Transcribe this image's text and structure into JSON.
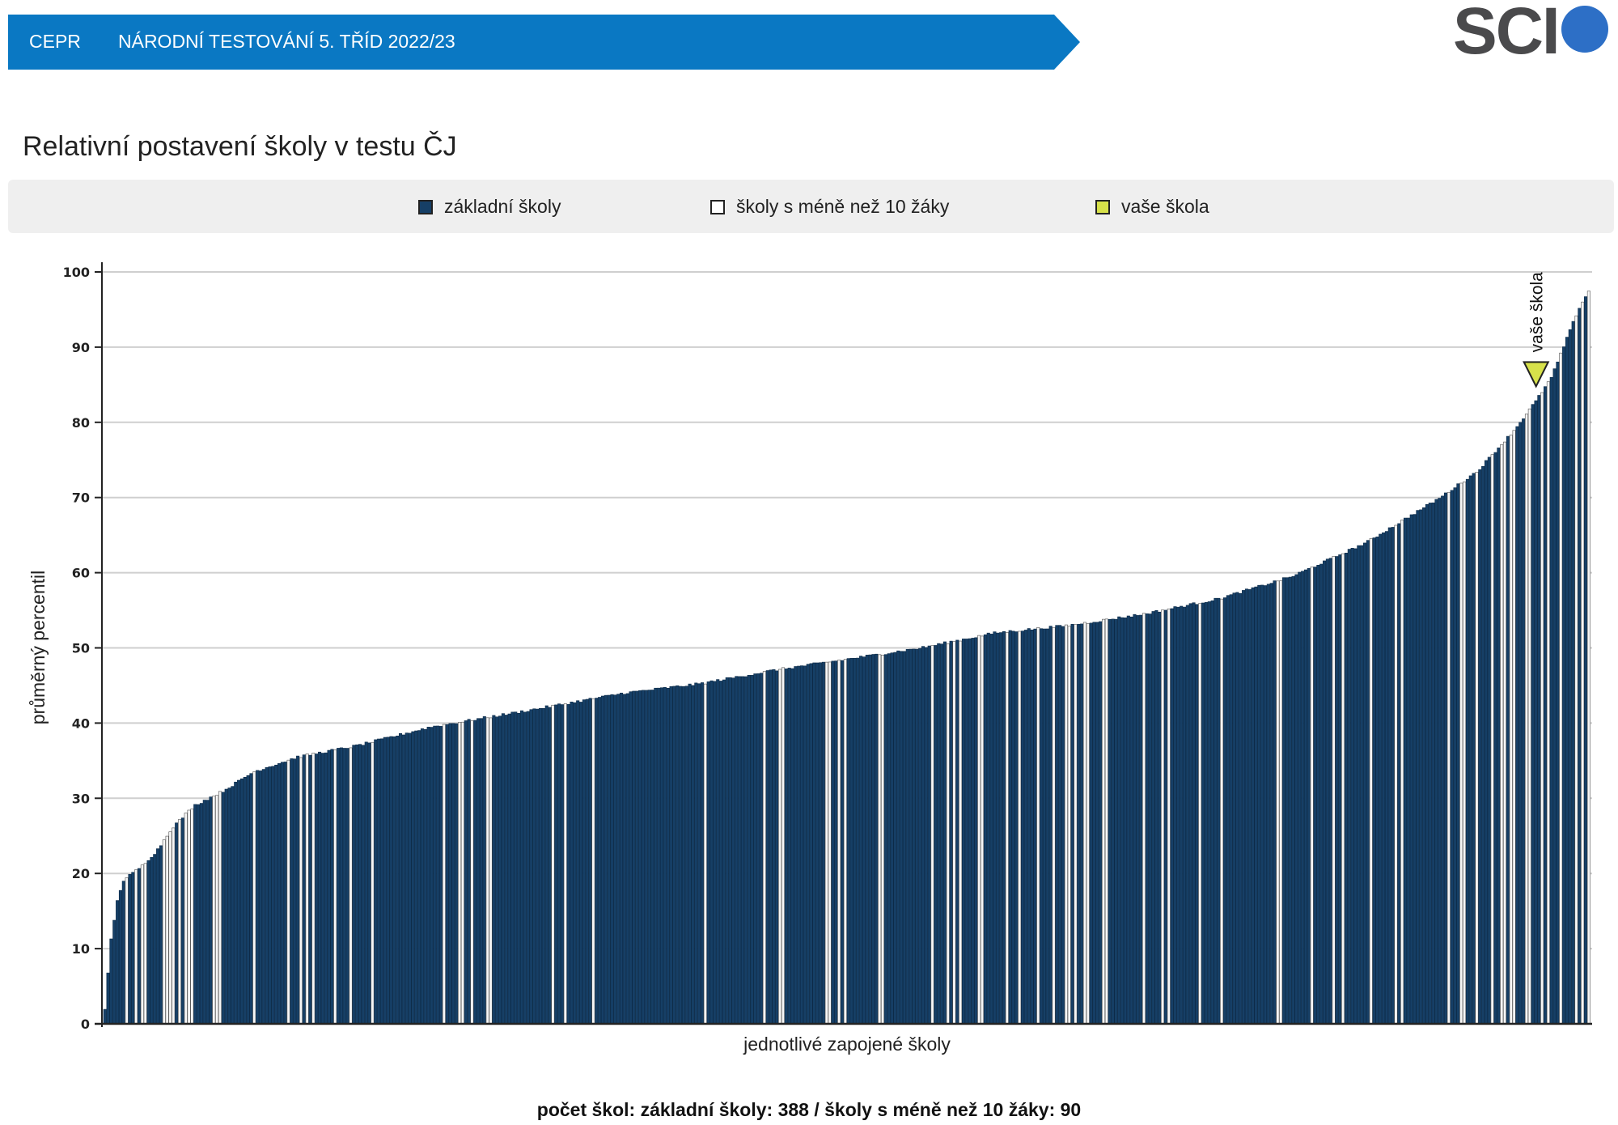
{
  "header": {
    "org": "CEPR",
    "title": "NÁRODNÍ TESTOVÁNÍ 5. TŘÍD 2022/23",
    "logo_text": "SCI",
    "logo_icon": "sci-circle-logo"
  },
  "colors": {
    "banner": "#0a78c3",
    "zakladni": "#163f66",
    "male": "#f6f6f6",
    "vase": "#d7e14a",
    "logo_dot": "#2d6fc6"
  },
  "legend": {
    "items": [
      {
        "label": "základní školy",
        "color": "#163f66"
      },
      {
        "label": "školy s méně než 10 žáky",
        "color": "#ffffff"
      },
      {
        "label": "vaše škola",
        "color": "#d7e14a"
      }
    ]
  },
  "footer": {
    "note": "počet škol: základní školy: 388 / školy s méně než 10 žáky: 90"
  },
  "chart_data": {
    "type": "bar",
    "title": "Relativní postavení školy v testu ČJ",
    "xlabel": "jednotlivé zapojené školy",
    "ylabel": "průměrný percentil",
    "ylim": [
      0,
      100
    ],
    "yticks": [
      0,
      10,
      20,
      30,
      40,
      50,
      60,
      70,
      80,
      90,
      100
    ],
    "grid": true,
    "legend_position": "top",
    "series": [
      {
        "name": "základní školy",
        "count": 388
      },
      {
        "name": "školy s méně než 10 žáky",
        "count": 90
      }
    ],
    "sorted_ascending": true,
    "curve_points": [
      {
        "rank": 0.0,
        "value": 1.8
      },
      {
        "rank": 0.004,
        "value": 11
      },
      {
        "rank": 0.008,
        "value": 16
      },
      {
        "rank": 0.012,
        "value": 19
      },
      {
        "rank": 0.025,
        "value": 21
      },
      {
        "rank": 0.035,
        "value": 23
      },
      {
        "rank": 0.045,
        "value": 26
      },
      {
        "rank": 0.06,
        "value": 29
      },
      {
        "rank": 0.08,
        "value": 31
      },
      {
        "rank": 0.1,
        "value": 33.5
      },
      {
        "rank": 0.13,
        "value": 35.5
      },
      {
        "rank": 0.17,
        "value": 37
      },
      {
        "rank": 0.22,
        "value": 39.5
      },
      {
        "rank": 0.28,
        "value": 41.5
      },
      {
        "rank": 0.35,
        "value": 44
      },
      {
        "rank": 0.4,
        "value": 45.2
      },
      {
        "rank": 0.45,
        "value": 47
      },
      {
        "rank": 0.5,
        "value": 48.5
      },
      {
        "rank": 0.55,
        "value": 50
      },
      {
        "rank": 0.6,
        "value": 52
      },
      {
        "rank": 0.65,
        "value": 53
      },
      {
        "rank": 0.7,
        "value": 54.5
      },
      {
        "rank": 0.75,
        "value": 56.5
      },
      {
        "rank": 0.8,
        "value": 59.5
      },
      {
        "rank": 0.85,
        "value": 64
      },
      {
        "rank": 0.9,
        "value": 70
      },
      {
        "rank": 0.925,
        "value": 73.5
      },
      {
        "rank": 0.95,
        "value": 79
      },
      {
        "rank": 0.965,
        "value": 83
      },
      {
        "rank": 0.975,
        "value": 86
      },
      {
        "rank": 0.985,
        "value": 91
      },
      {
        "rank": 0.993,
        "value": 95
      },
      {
        "rank": 1.0,
        "value": 97.5
      }
    ],
    "vase_skola": {
      "label": "vaše škola",
      "rank": 0.964,
      "value": 85
    }
  }
}
